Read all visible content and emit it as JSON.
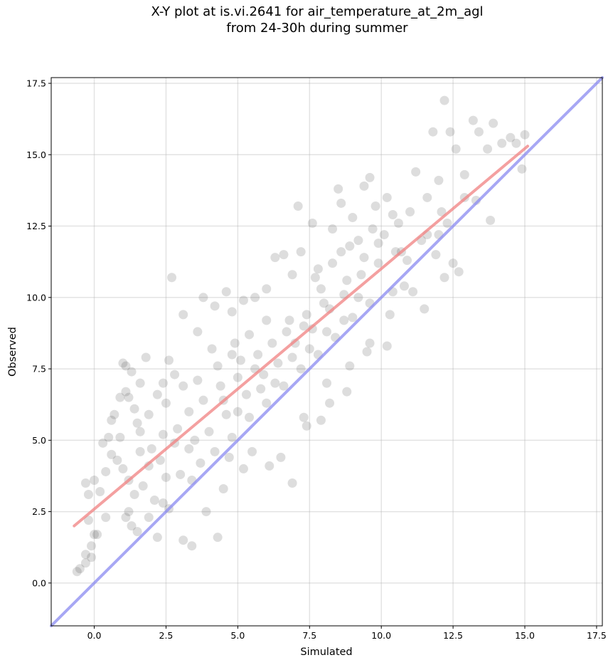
{
  "chart_data": {
    "type": "scatter",
    "title": "X-Y plot at is.vi.2641 for air_temperature_at_2m_agl",
    "subtitle": "from 24-30h during summer",
    "xlabel": "Simulated",
    "ylabel": "Observed",
    "xlim": [
      -1.5,
      17.7
    ],
    "ylim": [
      -1.5,
      17.7
    ],
    "xticks": [
      0.0,
      2.5,
      5.0,
      7.5,
      10.0,
      12.5,
      15.0,
      17.5
    ],
    "yticks": [
      0.0,
      2.5,
      5.0,
      7.5,
      10.0,
      12.5,
      15.0,
      17.5
    ],
    "xtick_labels": [
      "0.0",
      "2.5",
      "5.0",
      "7.5",
      "10.0",
      "12.5",
      "15.0",
      "17.5"
    ],
    "ytick_labels": [
      "0.0",
      "2.5",
      "5.0",
      "7.5",
      "10.0",
      "12.5",
      "15.0",
      "17.5"
    ],
    "grid": true,
    "marker_color": "#404040",
    "series": [
      {
        "points": [
          [
            -0.6,
            0.4
          ],
          [
            -0.5,
            0.5
          ],
          [
            -0.3,
            0.7
          ],
          [
            -0.3,
            1.0
          ],
          [
            -0.1,
            0.9
          ],
          [
            -0.1,
            1.3
          ],
          [
            0.1,
            1.7
          ],
          [
            0.0,
            1.7
          ],
          [
            -0.3,
            3.5
          ],
          [
            -0.2,
            3.1
          ],
          [
            -0.2,
            2.2
          ],
          [
            0.2,
            3.2
          ],
          [
            0.0,
            3.6
          ],
          [
            0.4,
            2.3
          ],
          [
            0.4,
            3.9
          ],
          [
            0.3,
            4.9
          ],
          [
            0.5,
            5.1
          ],
          [
            0.6,
            5.7
          ],
          [
            0.7,
            5.9
          ],
          [
            0.9,
            6.5
          ],
          [
            1.1,
            6.7
          ],
          [
            1.0,
            7.7
          ],
          [
            1.3,
            7.4
          ],
          [
            1.1,
            7.6
          ],
          [
            1.6,
            7.0
          ],
          [
            1.8,
            7.9
          ],
          [
            1.2,
            6.5
          ],
          [
            1.4,
            6.1
          ],
          [
            0.8,
            4.3
          ],
          [
            1.0,
            4.0
          ],
          [
            1.2,
            3.6
          ],
          [
            1.4,
            3.1
          ],
          [
            1.2,
            2.5
          ],
          [
            1.1,
            2.3
          ],
          [
            1.5,
            1.8
          ],
          [
            1.3,
            2.0
          ],
          [
            1.9,
            2.3
          ],
          [
            2.2,
            1.6
          ],
          [
            2.1,
            2.9
          ],
          [
            1.7,
            3.4
          ],
          [
            1.9,
            4.1
          ],
          [
            1.6,
            4.6
          ],
          [
            1.6,
            5.3
          ],
          [
            1.9,
            5.9
          ],
          [
            2.2,
            6.6
          ],
          [
            2.4,
            7.0
          ],
          [
            2.6,
            7.8
          ],
          [
            2.8,
            7.3
          ],
          [
            2.5,
            6.3
          ],
          [
            2.4,
            5.2
          ],
          [
            2.3,
            4.3
          ],
          [
            2.5,
            3.7
          ],
          [
            2.4,
            2.8
          ],
          [
            2.6,
            2.6
          ],
          [
            2.7,
            10.7
          ],
          [
            3.1,
            9.4
          ],
          [
            3.6,
            8.8
          ],
          [
            3.8,
            10.0
          ],
          [
            4.1,
            8.2
          ],
          [
            4.2,
            9.7
          ],
          [
            4.6,
            10.2
          ],
          [
            4.8,
            9.5
          ],
          [
            4.9,
            8.4
          ],
          [
            5.2,
            9.9
          ],
          [
            5.6,
            10.0
          ],
          [
            6.0,
            10.3
          ],
          [
            6.3,
            11.4
          ],
          [
            6.6,
            11.5
          ],
          [
            6.9,
            10.8
          ],
          [
            7.2,
            11.6
          ],
          [
            7.1,
            13.2
          ],
          [
            7.6,
            12.6
          ],
          [
            7.8,
            11.0
          ],
          [
            8.3,
            12.4
          ],
          [
            8.6,
            13.3
          ],
          [
            8.5,
            13.8
          ],
          [
            9.0,
            12.8
          ],
          [
            9.4,
            13.9
          ],
          [
            9.6,
            14.2
          ],
          [
            9.8,
            13.2
          ],
          [
            10.2,
            13.5
          ],
          [
            10.6,
            12.6
          ],
          [
            11.0,
            13.0
          ],
          [
            11.2,
            14.4
          ],
          [
            11.6,
            13.5
          ],
          [
            11.8,
            15.8
          ],
          [
            12.0,
            14.1
          ],
          [
            12.2,
            16.9
          ],
          [
            12.4,
            15.8
          ],
          [
            12.6,
            15.2
          ],
          [
            12.9,
            14.3
          ],
          [
            13.2,
            16.2
          ],
          [
            13.4,
            15.8
          ],
          [
            13.7,
            15.2
          ],
          [
            13.9,
            16.1
          ],
          [
            14.2,
            15.4
          ],
          [
            14.5,
            15.6
          ],
          [
            14.7,
            15.4
          ],
          [
            15.0,
            15.7
          ],
          [
            14.9,
            14.5
          ],
          [
            13.8,
            12.7
          ],
          [
            12.5,
            11.2
          ],
          [
            12.7,
            10.9
          ],
          [
            12.2,
            10.7
          ],
          [
            11.5,
            9.6
          ],
          [
            10.8,
            10.4
          ],
          [
            10.4,
            10.2
          ],
          [
            10.2,
            8.3
          ],
          [
            9.5,
            8.1
          ],
          [
            8.8,
            6.7
          ],
          [
            8.2,
            6.3
          ],
          [
            7.9,
            5.7
          ],
          [
            7.4,
            5.5
          ],
          [
            6.9,
            3.5
          ],
          [
            6.1,
            4.1
          ],
          [
            5.2,
            4.0
          ],
          [
            4.5,
            3.3
          ],
          [
            3.9,
            2.5
          ],
          [
            4.3,
            1.6
          ],
          [
            3.4,
            1.3
          ],
          [
            3.1,
            1.5
          ],
          [
            3.4,
            3.6
          ],
          [
            4.7,
            4.4
          ],
          [
            5.5,
            4.6
          ],
          [
            6.5,
            4.4
          ],
          [
            7.3,
            5.8
          ],
          [
            8.1,
            7.0
          ],
          [
            8.9,
            7.6
          ],
          [
            9.6,
            8.4
          ],
          [
            10.3,
            9.4
          ],
          [
            11.1,
            10.2
          ],
          [
            11.9,
            11.5
          ],
          [
            12.3,
            12.6
          ],
          [
            12.9,
            13.5
          ],
          [
            13.3,
            13.4
          ],
          [
            11.4,
            12.0
          ],
          [
            10.7,
            11.6
          ],
          [
            9.9,
            11.9
          ],
          [
            9.2,
            12.0
          ],
          [
            8.6,
            11.6
          ],
          [
            7.9,
            10.3
          ],
          [
            7.4,
            9.4
          ],
          [
            6.8,
            9.2
          ],
          [
            6.2,
            8.4
          ],
          [
            5.7,
            8.0
          ],
          [
            5.0,
            7.2
          ],
          [
            4.4,
            6.9
          ],
          [
            3.8,
            6.4
          ],
          [
            3.3,
            6.0
          ],
          [
            2.9,
            5.4
          ],
          [
            3.5,
            5.0
          ],
          [
            4.0,
            5.3
          ],
          [
            4.6,
            5.9
          ],
          [
            5.3,
            6.6
          ],
          [
            5.9,
            7.3
          ],
          [
            6.4,
            7.7
          ],
          [
            7.0,
            8.4
          ],
          [
            7.6,
            8.9
          ],
          [
            8.2,
            9.6
          ],
          [
            8.7,
            10.1
          ],
          [
            9.3,
            10.8
          ],
          [
            9.9,
            11.2
          ],
          [
            10.5,
            11.6
          ],
          [
            4.2,
            4.6
          ],
          [
            4.8,
            5.1
          ],
          [
            5.4,
            5.8
          ],
          [
            6.0,
            6.3
          ],
          [
            6.6,
            6.9
          ],
          [
            7.2,
            7.5
          ],
          [
            7.8,
            8.0
          ],
          [
            8.4,
            8.6
          ],
          [
            9.0,
            9.3
          ],
          [
            9.6,
            9.8
          ],
          [
            3.7,
            4.2
          ],
          [
            3.0,
            3.8
          ],
          [
            2.0,
            4.7
          ],
          [
            1.5,
            5.6
          ],
          [
            0.9,
            5.1
          ],
          [
            0.6,
            4.5
          ],
          [
            2.8,
            4.9
          ],
          [
            3.3,
            4.7
          ],
          [
            5.1,
            7.8
          ],
          [
            5.6,
            7.5
          ],
          [
            6.7,
            8.8
          ],
          [
            7.3,
            9.0
          ],
          [
            8.0,
            9.8
          ],
          [
            8.8,
            10.6
          ],
          [
            9.4,
            11.4
          ],
          [
            10.1,
            12.2
          ],
          [
            4.5,
            6.4
          ],
          [
            5.0,
            6.0
          ],
          [
            5.8,
            6.8
          ],
          [
            6.3,
            7.0
          ],
          [
            6.9,
            7.9
          ],
          [
            7.5,
            8.2
          ],
          [
            8.1,
            8.8
          ],
          [
            8.7,
            9.2
          ],
          [
            9.2,
            10.0
          ],
          [
            6.0,
            9.2
          ],
          [
            5.4,
            8.7
          ],
          [
            4.8,
            8.0
          ],
          [
            4.3,
            7.6
          ],
          [
            3.6,
            7.1
          ],
          [
            3.1,
            6.9
          ],
          [
            7.7,
            10.7
          ],
          [
            8.3,
            11.2
          ],
          [
            8.9,
            11.8
          ],
          [
            9.7,
            12.4
          ],
          [
            10.4,
            12.9
          ],
          [
            10.9,
            11.3
          ],
          [
            11.6,
            12.2
          ],
          [
            12.1,
            13.0
          ],
          [
            12.0,
            12.2
          ]
        ]
      }
    ],
    "reference_lines": [
      {
        "color": "#f08080",
        "x": [
          -0.7,
          15.1
        ],
        "y": [
          2.0,
          15.3
        ]
      },
      {
        "color": "#8a8af0",
        "x": [
          -1.5,
          17.7
        ],
        "y": [
          -1.5,
          17.7
        ]
      }
    ]
  }
}
